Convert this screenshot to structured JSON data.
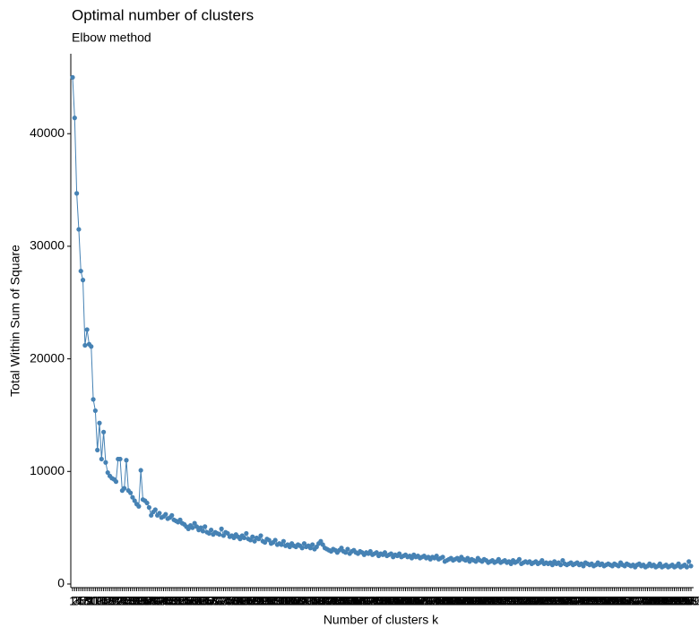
{
  "chart_data": {
    "type": "line",
    "title": "Optimal number of clusters",
    "subtitle": "Elbow method",
    "x_label": "Number of clusters k",
    "y_label": "Total Within Sum of Square",
    "categories": [
      "1",
      "2",
      "3",
      "4",
      "5",
      "6",
      "7",
      "8",
      "9",
      "10",
      "11",
      "12",
      "13",
      "14",
      "15",
      "16",
      "17",
      "18",
      "19",
      "20",
      "21",
      "22",
      "23",
      "24",
      "25",
      "26",
      "27",
      "28",
      "29",
      "30",
      "31",
      "32",
      "33",
      "34",
      "35",
      "36",
      "37",
      "38",
      "39",
      "40",
      "41",
      "42",
      "43",
      "44",
      "45",
      "46",
      "47",
      "48",
      "49",
      "50",
      "51",
      "52",
      "53",
      "54",
      "55",
      "56",
      "57",
      "58",
      "59",
      "60",
      "61",
      "62",
      "63",
      "64",
      "65",
      "66",
      "67",
      "68",
      "69",
      "70",
      "71",
      "72",
      "73",
      "74",
      "75",
      "76",
      "77",
      "78",
      "79",
      "80",
      "81",
      "82",
      "83",
      "84",
      "85",
      "86",
      "87",
      "88",
      "89",
      "90",
      "91",
      "92",
      "93",
      "94",
      "95",
      "96",
      "97",
      "98",
      "99",
      "100",
      "101",
      "102",
      "103",
      "104",
      "105",
      "106",
      "107",
      "108",
      "109",
      "110",
      "111",
      "112",
      "113",
      "114",
      "115",
      "116",
      "117",
      "118",
      "119",
      "120",
      "121",
      "122",
      "123",
      "124",
      "125",
      "126",
      "127",
      "128",
      "129",
      "130",
      "131",
      "132",
      "133",
      "134",
      "135",
      "136",
      "137",
      "138",
      "139",
      "140",
      "141",
      "142",
      "143",
      "144",
      "145",
      "146",
      "147",
      "148",
      "149",
      "150",
      "151",
      "152",
      "153",
      "154",
      "155",
      "156",
      "157",
      "158",
      "159",
      "160",
      "161",
      "162",
      "163",
      "164",
      "165",
      "166",
      "167",
      "168",
      "169",
      "170",
      "171",
      "172",
      "173",
      "174",
      "175",
      "176",
      "177",
      "178",
      "179",
      "180",
      "181",
      "182",
      "183",
      "184",
      "185",
      "186",
      "187",
      "188",
      "189",
      "190",
      "191",
      "192",
      "193",
      "194",
      "195",
      "196",
      "197",
      "198",
      "199",
      "200",
      "201",
      "202",
      "203",
      "204",
      "205",
      "206",
      "207",
      "208",
      "209",
      "210",
      "211",
      "212",
      "213",
      "214",
      "215",
      "216",
      "217",
      "218",
      "219",
      "220",
      "221",
      "222",
      "223",
      "224",
      "225",
      "226",
      "227",
      "228",
      "229",
      "230",
      "231",
      "232",
      "233",
      "234",
      "235",
      "236",
      "237",
      "238",
      "239",
      "240",
      "241",
      "242",
      "243",
      "244",
      "245",
      "246",
      "247",
      "248",
      "249",
      "250",
      "251",
      "252",
      "253",
      "254",
      "255",
      "256",
      "257",
      "258",
      "259",
      "260",
      "261",
      "262",
      "263",
      "264",
      "265",
      "266",
      "267",
      "268",
      "269",
      "270",
      "271",
      "272",
      "273",
      "274",
      "275",
      "276",
      "277",
      "278",
      "279",
      "280",
      "281",
      "282",
      "283",
      "284",
      "285",
      "286",
      "287",
      "288",
      "289",
      "290",
      "291",
      "292",
      "293",
      "294",
      "295",
      "296",
      "297",
      "298",
      "299",
      "300"
    ],
    "series": [
      {
        "color": "#4682b4",
        "values": [
          45000,
          41400,
          34700,
          31500,
          27800,
          27000,
          21200,
          22600,
          21300,
          21100,
          16400,
          15400,
          11900,
          14300,
          11100,
          13500,
          10800,
          9900,
          9600,
          9400,
          9300,
          9100,
          11100,
          11100,
          8300,
          8500,
          11000,
          8300,
          8100,
          7700,
          7400,
          7100,
          6900,
          10100,
          7500,
          7400,
          7200,
          6800,
          6100,
          6400,
          6600,
          6100,
          6300,
          5900,
          6000,
          6200,
          5800,
          5900,
          6100,
          5700,
          5600,
          5500,
          5700,
          5400,
          5300,
          5100,
          4900,
          5200,
          5000,
          5400,
          5100,
          4800,
          5000,
          4700,
          5100,
          4600,
          4500,
          4800,
          4400,
          4600,
          4500,
          4400,
          4900,
          4300,
          4600,
          4500,
          4200,
          4300,
          4100,
          4400,
          4200,
          4000,
          4300,
          4100,
          4500,
          4000,
          3900,
          4200,
          3800,
          4100,
          4000,
          4300,
          3800,
          3700,
          4000,
          3900,
          3600,
          3700,
          3900,
          3500,
          3600,
          3500,
          3800,
          3400,
          3500,
          3300,
          3600,
          3400,
          3300,
          3500,
          3400,
          3200,
          3600,
          3300,
          3400,
          3200,
          3500,
          3100,
          3300,
          3600,
          3800,
          3500,
          3200,
          3100,
          3000,
          2900,
          3100,
          3000,
          2800,
          3000,
          3200,
          2900,
          2800,
          3100,
          2700,
          2900,
          3000,
          2800,
          2700,
          2900,
          2800,
          2600,
          2800,
          2700,
          2900,
          2600,
          2700,
          2800,
          2500,
          2700,
          2600,
          2800,
          2500,
          2600,
          2700,
          2400,
          2600,
          2500,
          2700,
          2400,
          2500,
          2600,
          2400,
          2500,
          2300,
          2600,
          2400,
          2500,
          2300,
          2400,
          2500,
          2300,
          2400,
          2200,
          2400,
          2300,
          2500,
          2200,
          2300,
          2400,
          2000,
          2100,
          2200,
          2300,
          2100,
          2200,
          2300,
          2100,
          2400,
          2200,
          2100,
          2300,
          2000,
          2200,
          2100,
          2000,
          2300,
          2100,
          2000,
          2200,
          2100,
          1900,
          2000,
          2100,
          1900,
          2000,
          2200,
          1900,
          2000,
          2100,
          1900,
          2000,
          1800,
          2100,
          1900,
          2000,
          2200,
          1800,
          1900,
          2000,
          1900,
          2000,
          1800,
          1900,
          2000,
          1800,
          1900,
          2100,
          1800,
          1900,
          1800,
          1900,
          1700,
          2000,
          1800,
          1900,
          1700,
          2100,
          1800,
          1700,
          1800,
          1900,
          1700,
          1800,
          1900,
          1700,
          1800,
          1600,
          1900,
          1800,
          1700,
          1800,
          1600,
          1700,
          1900,
          1700,
          1800,
          1600,
          1700,
          1800,
          1700,
          1600,
          1800,
          1700,
          1600,
          1900,
          1700,
          1600,
          1800,
          1700,
          1600,
          1700,
          1500,
          1700,
          1800,
          1600,
          1700,
          1500,
          1600,
          1800,
          1600,
          1700,
          1500,
          1600,
          1800,
          1500,
          1600,
          1700,
          1500,
          1600,
          1700,
          1500,
          1600,
          1800,
          1500,
          1600,
          1700,
          1500,
          2000,
          1600
        ]
      }
    ],
    "ylim": [
      -320,
      47100
    ],
    "yticks": [
      0,
      10000,
      20000,
      30000,
      40000
    ]
  }
}
